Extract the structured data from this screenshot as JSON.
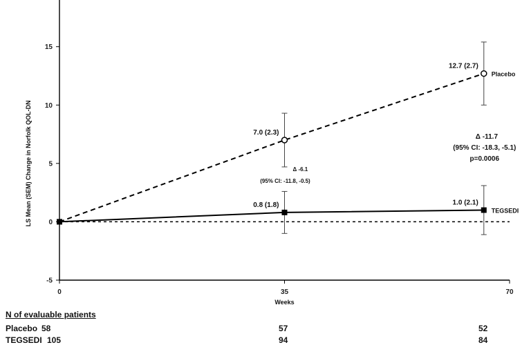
{
  "chart_data": {
    "type": "line",
    "ylabel": "LS Mean (SEM) Change in Norfolk QOL-DN",
    "xlabel": "Weeks",
    "xlim": [
      0,
      70
    ],
    "ylim": [
      -5,
      19
    ],
    "xticks": [
      "0",
      "35",
      "70"
    ],
    "yticks": [
      "-5",
      "0",
      "5",
      "10",
      "15"
    ],
    "series": [
      {
        "name": "Placebo",
        "line_style": "dashed",
        "marker": "open-circle",
        "points": [
          {
            "x": 0,
            "y": 0,
            "err": 0,
            "label": ""
          },
          {
            "x": 35,
            "y": 7.0,
            "err": 2.3,
            "label": "7.0 (2.3)"
          },
          {
            "x": 66,
            "y": 12.7,
            "err": 2.7,
            "label": "12.7 (2.7)"
          }
        ]
      },
      {
        "name": "TEGSEDI",
        "line_style": "solid",
        "marker": "filled-square",
        "points": [
          {
            "x": 0,
            "y": 0,
            "err": 0,
            "label": ""
          },
          {
            "x": 35,
            "y": 0.8,
            "err": 1.8,
            "label": "0.8 (1.8)"
          },
          {
            "x": 66,
            "y": 1.0,
            "err": 2.1,
            "label": "1.0 (2.1)"
          }
        ]
      }
    ],
    "reference_line": {
      "y": 0,
      "style": "dashed"
    },
    "annotations": [
      {
        "x": 35,
        "lines": [
          "Δ -6.1",
          "(95% CI: -11.8, -0.5)"
        ]
      },
      {
        "x": 66,
        "lines": [
          "Δ -11.7",
          "(95% CI: -18.3, -5.1)",
          "p=0.0006"
        ]
      }
    ]
  },
  "patients_table": {
    "heading": "N of evaluable patients",
    "rows": [
      {
        "name": "Placebo",
        "values": [
          "58",
          "57",
          "52"
        ]
      },
      {
        "name": "TEGSEDI",
        "values": [
          "105",
          "94",
          "84"
        ]
      }
    ]
  }
}
